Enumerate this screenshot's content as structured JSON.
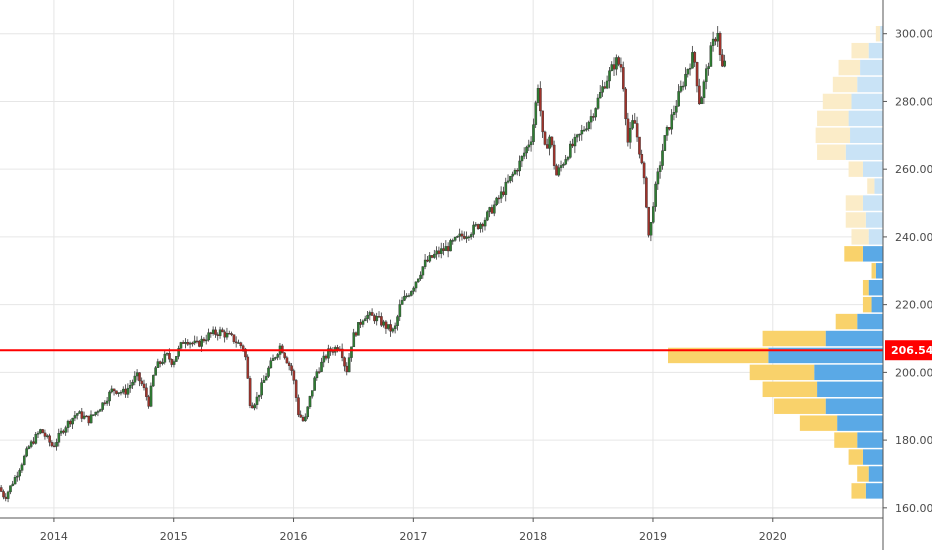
{
  "chart_data": {
    "type": "candlestick",
    "x_ticks": [
      "2014",
      "2015",
      "2016",
      "2017",
      "2018",
      "2019",
      "2020"
    ],
    "y_ticks": [
      "160.00",
      "180.00",
      "200.00",
      "220.00",
      "240.00",
      "260.00",
      "280.00",
      "300.00"
    ],
    "ylim": [
      157,
      307
    ],
    "xlim": [
      2013.55,
      2020.92
    ],
    "grid": true,
    "price_line": {
      "value": 206.54,
      "label": "206.54",
      "color": "#ff0000"
    },
    "colors": {
      "up": "#2e7d32",
      "down": "#a0322a",
      "vol_blue_strong": "#5aa9e6",
      "vol_yellow_strong": "#f9d26b",
      "vol_blue_light": "#c9e3f6",
      "vol_yellow_light": "#fbecc8",
      "price_line": "#ff0000",
      "grid": "#e6e6e6"
    },
    "price_path": [
      [
        2013.55,
        166
      ],
      [
        2013.6,
        163
      ],
      [
        2013.7,
        170
      ],
      [
        2013.8,
        178
      ],
      [
        2013.9,
        183
      ],
      [
        2014.0,
        178
      ],
      [
        2014.1,
        184
      ],
      [
        2014.2,
        188
      ],
      [
        2014.3,
        186
      ],
      [
        2014.4,
        190
      ],
      [
        2014.5,
        195
      ],
      [
        2014.6,
        194
      ],
      [
        2014.7,
        199
      ],
      [
        2014.75,
        196
      ],
      [
        2014.8,
        191
      ],
      [
        2014.85,
        201
      ],
      [
        2014.95,
        205
      ],
      [
        2015.0,
        203
      ],
      [
        2015.1,
        210
      ],
      [
        2015.2,
        208
      ],
      [
        2015.3,
        211
      ],
      [
        2015.4,
        212
      ],
      [
        2015.5,
        210
      ],
      [
        2015.6,
        207
      ],
      [
        2015.65,
        190
      ],
      [
        2015.7,
        192
      ],
      [
        2015.8,
        201
      ],
      [
        2015.9,
        208
      ],
      [
        2016.0,
        200
      ],
      [
        2016.05,
        188
      ],
      [
        2016.1,
        185
      ],
      [
        2016.15,
        193
      ],
      [
        2016.2,
        200
      ],
      [
        2016.3,
        206
      ],
      [
        2016.4,
        208
      ],
      [
        2016.45,
        200
      ],
      [
        2016.5,
        210
      ],
      [
        2016.6,
        217
      ],
      [
        2016.7,
        216
      ],
      [
        2016.8,
        213
      ],
      [
        2016.85,
        212
      ],
      [
        2016.9,
        220
      ],
      [
        2017.0,
        225
      ],
      [
        2017.1,
        232
      ],
      [
        2017.2,
        235
      ],
      [
        2017.3,
        237
      ],
      [
        2017.4,
        240
      ],
      [
        2017.5,
        242
      ],
      [
        2017.6,
        245
      ],
      [
        2017.7,
        250
      ],
      [
        2017.8,
        256
      ],
      [
        2017.9,
        262
      ],
      [
        2018.0,
        270
      ],
      [
        2018.05,
        285
      ],
      [
        2018.1,
        265
      ],
      [
        2018.15,
        270
      ],
      [
        2018.2,
        258
      ],
      [
        2018.3,
        265
      ],
      [
        2018.4,
        270
      ],
      [
        2018.5,
        276
      ],
      [
        2018.6,
        285
      ],
      [
        2018.7,
        292
      ],
      [
        2018.75,
        290
      ],
      [
        2018.8,
        268
      ],
      [
        2018.85,
        275
      ],
      [
        2018.9,
        265
      ],
      [
        2018.95,
        252
      ],
      [
        2018.98,
        237
      ],
      [
        2019.0,
        248
      ],
      [
        2019.1,
        268
      ],
      [
        2019.2,
        279
      ],
      [
        2019.3,
        290
      ],
      [
        2019.35,
        294
      ],
      [
        2019.4,
        279
      ],
      [
        2019.45,
        288
      ],
      [
        2019.5,
        296
      ],
      [
        2019.55,
        301
      ],
      [
        2019.58,
        289
      ],
      [
        2019.6,
        291
      ]
    ],
    "volume_profile": [
      {
        "price": 300,
        "buy": 2,
        "sell": 3,
        "light": true
      },
      {
        "price": 295,
        "buy": 10,
        "sell": 12,
        "light": true
      },
      {
        "price": 290,
        "buy": 16,
        "sell": 15,
        "light": true
      },
      {
        "price": 285,
        "buy": 18,
        "sell": 17,
        "light": true
      },
      {
        "price": 280,
        "buy": 22,
        "sell": 20,
        "light": true
      },
      {
        "price": 275,
        "buy": 24,
        "sell": 22,
        "light": true
      },
      {
        "price": 270,
        "buy": 23,
        "sell": 24,
        "light": true
      },
      {
        "price": 265,
        "buy": 26,
        "sell": 20,
        "light": true
      },
      {
        "price": 260,
        "buy": 14,
        "sell": 10,
        "light": true
      },
      {
        "price": 255,
        "buy": 6,
        "sell": 5,
        "light": true
      },
      {
        "price": 250,
        "buy": 14,
        "sell": 12,
        "light": true
      },
      {
        "price": 245,
        "buy": 12,
        "sell": 14,
        "light": true
      },
      {
        "price": 240,
        "buy": 10,
        "sell": 12,
        "light": true
      },
      {
        "price": 235,
        "buy": 14,
        "sell": 13,
        "light": false
      },
      {
        "price": 230,
        "buy": 5,
        "sell": 3,
        "light": false
      },
      {
        "price": 225,
        "buy": 10,
        "sell": 4,
        "light": false
      },
      {
        "price": 220,
        "buy": 8,
        "sell": 6,
        "light": false
      },
      {
        "price": 215,
        "buy": 18,
        "sell": 15,
        "light": false
      },
      {
        "price": 210,
        "buy": 40,
        "sell": 44,
        "light": false
      },
      {
        "price": 205,
        "buy": 80,
        "sell": 70,
        "light": false
      },
      {
        "price": 200,
        "buy": 48,
        "sell": 45,
        "light": false
      },
      {
        "price": 195,
        "buy": 46,
        "sell": 38,
        "light": false
      },
      {
        "price": 190,
        "buy": 40,
        "sell": 36,
        "light": false
      },
      {
        "price": 185,
        "buy": 32,
        "sell": 26,
        "light": false
      },
      {
        "price": 180,
        "buy": 18,
        "sell": 16,
        "light": false
      },
      {
        "price": 175,
        "buy": 14,
        "sell": 10,
        "light": false
      },
      {
        "price": 170,
        "buy": 10,
        "sell": 8,
        "light": false
      },
      {
        "price": 165,
        "buy": 12,
        "sell": 10,
        "light": false
      }
    ]
  }
}
